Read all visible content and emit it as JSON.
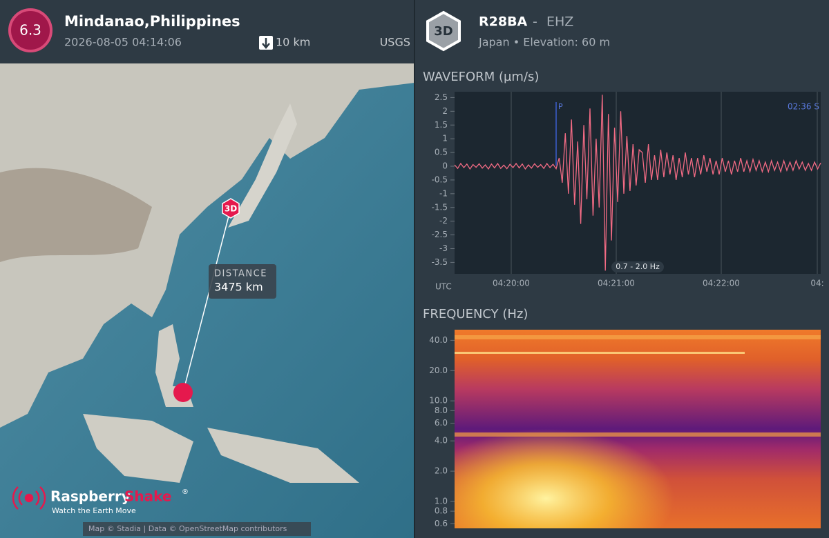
{
  "event": {
    "magnitude": "6.3",
    "location": "Mindanao,Philippines",
    "time": "2026-08-05 04:14:06",
    "depth": "10 km",
    "source": "USGS"
  },
  "station": {
    "badge": "3D",
    "name": "R28BA",
    "separator": "-",
    "channel": "EHZ",
    "details": "Japan • Elevation: 60 m"
  },
  "map": {
    "marker": "3D",
    "distance_label": "DISTANCE",
    "distance": "3475 km",
    "brand_first": "Raspberry",
    "brand_second": "Shake",
    "brand_mark": "®",
    "tagline": "Watch the Earth Move",
    "attribution": "Map © Stadia | Data © OpenStreetMap contributors"
  },
  "waveform": {
    "title": "WAVEFORM (µm/s)",
    "color": "#f26b84",
    "ylim": [
      -3.8,
      2.7
    ],
    "yticks": [
      2.5,
      2,
      1.5,
      1,
      0.5,
      0,
      -0.5,
      -1,
      -1.5,
      -2,
      -2.5,
      -3,
      -3.5
    ],
    "x_label": "UTC",
    "xticks": [
      "04:20:00",
      "04:21:00",
      "04:22:00",
      "04:"
    ],
    "p_label": "P",
    "clock": "02:36 S",
    "filter": "0.7 - 2.0 Hz",
    "values": [
      0.05,
      -0.08,
      0.1,
      -0.05,
      0.08,
      -0.1,
      0.06,
      -0.04,
      0.09,
      -0.07,
      0.05,
      -0.1,
      0.08,
      -0.06,
      0.1,
      -0.08,
      0.04,
      -0.09,
      0.07,
      -0.05,
      0.1,
      -0.06,
      0.08,
      -0.1,
      0.05,
      -0.07,
      0.09,
      -0.04,
      0.06,
      -0.08,
      0.1,
      -0.05,
      0.07,
      -0.09,
      0.3,
      -0.6,
      1.2,
      -1.0,
      1.7,
      -1.4,
      0.9,
      -2.1,
      1.5,
      -1.2,
      2.1,
      -1.8,
      1.0,
      -1.5,
      2.6,
      -3.8,
      1.9,
      -2.7,
      1.4,
      -1.3,
      2.0,
      -1.0,
      1.1,
      -0.9,
      0.8,
      -0.7,
      0.6,
      0.5,
      -0.6,
      0.8,
      -0.5,
      0.4,
      -0.5,
      0.6,
      -0.4,
      0.5,
      -0.3,
      0.4,
      -0.5,
      0.3,
      -0.4,
      0.5,
      -0.3,
      0.3,
      -0.4,
      0.3,
      -0.3,
      0.4,
      -0.2,
      0.3,
      -0.3,
      0.2,
      -0.3,
      0.3,
      -0.2,
      0.2,
      -0.3,
      0.2,
      -0.2,
      0.3,
      -0.2,
      0.2,
      -0.2,
      0.25,
      -0.15,
      0.2,
      -0.2,
      0.15,
      -0.2,
      0.2,
      -0.15,
      0.15,
      -0.2,
      0.2,
      -0.15,
      0.15,
      -0.15,
      0.2,
      -0.1,
      0.15,
      -0.15,
      0.1,
      -0.15,
      0.15,
      -0.1,
      0.12
    ]
  },
  "frequency": {
    "title": "FREQUENCY (Hz)",
    "log": true,
    "ylim": [
      0.54,
      51
    ],
    "yticks": [
      {
        "value": 40,
        "label": "40.0"
      },
      {
        "value": 20,
        "label": "20.0"
      },
      {
        "value": 10,
        "label": "10.0"
      },
      {
        "value": 8,
        "label": "8.0"
      },
      {
        "value": 6,
        "label": "6.0"
      },
      {
        "value": 4,
        "label": "4.0"
      },
      {
        "value": 2,
        "label": "2.0"
      },
      {
        "value": 1,
        "label": "1.0"
      },
      {
        "value": 0.8,
        "label": "0.8"
      },
      {
        "value": 0.6,
        "label": "0.6"
      }
    ]
  }
}
